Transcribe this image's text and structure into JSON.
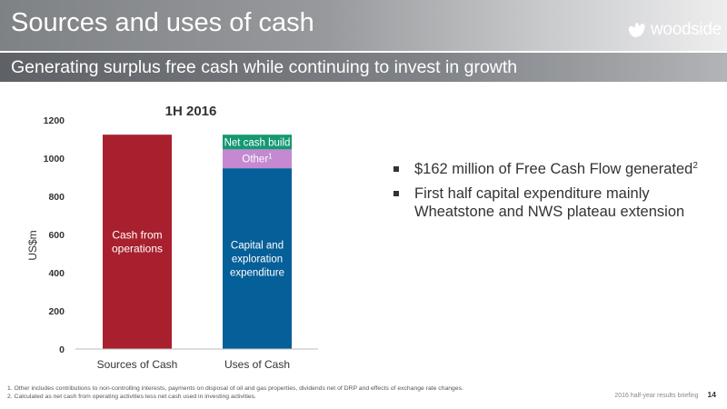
{
  "header": {
    "title": "Sources and uses of cash",
    "logo_text": "woodside",
    "logo_icon": "woodside-leaf-icon"
  },
  "subheader": {
    "title": "Generating surplus free cash while continuing to invest in growth"
  },
  "chart_data": {
    "type": "bar",
    "stacked": true,
    "title": "1H 2016",
    "xlabel": "",
    "ylabel": "US$m",
    "ylim": [
      0,
      1200
    ],
    "yticks": [
      "0",
      "200",
      "400",
      "600",
      "800",
      "1000",
      "1200"
    ],
    "yticks_values": [
      0,
      200,
      400,
      600,
      800,
      1000,
      1200
    ],
    "categories": [
      "Sources of Cash",
      "Uses of Cash"
    ],
    "series": [
      {
        "name": "Cash from operations",
        "label_lines": [
          "Cash from",
          "operations"
        ],
        "color": "#a8202d",
        "values": [
          1123,
          0
        ]
      },
      {
        "name": "Capital and exploration expenditure",
        "label_lines": [
          "Capital and",
          "exploration",
          "expenditure"
        ],
        "color": "#055f98",
        "values": [
          0,
          947
        ]
      },
      {
        "name": "Other",
        "label_lines": [
          "Other"
        ],
        "label_sup": "1",
        "color": "#c489d1",
        "values": [
          0,
          99
        ]
      },
      {
        "name": "Net cash build",
        "label_lines": [
          "Net cash build"
        ],
        "color": "#149872",
        "values": [
          0,
          77
        ]
      }
    ],
    "grid": false,
    "legend": "none"
  },
  "bullets": [
    {
      "text": "$162 million of Free Cash Flow generated",
      "sup": "2"
    },
    {
      "text": "First half capital expenditure mainly Wheatstone and NWS plateau extension",
      "sup": ""
    }
  ],
  "footnotes": [
    "1. Other includes contributions to non-controlling interests, payments on disposal of oil and gas properties, dividends net of DRP and effects of exchange rate changes.",
    "2. Calculated as net cash from operating activities less net cash used in investing activities."
  ],
  "footer": {
    "event": "2016 half-year results briefing",
    "page": "14"
  },
  "colors": {
    "header_text": "#ffffff",
    "body_text": "#333333"
  }
}
